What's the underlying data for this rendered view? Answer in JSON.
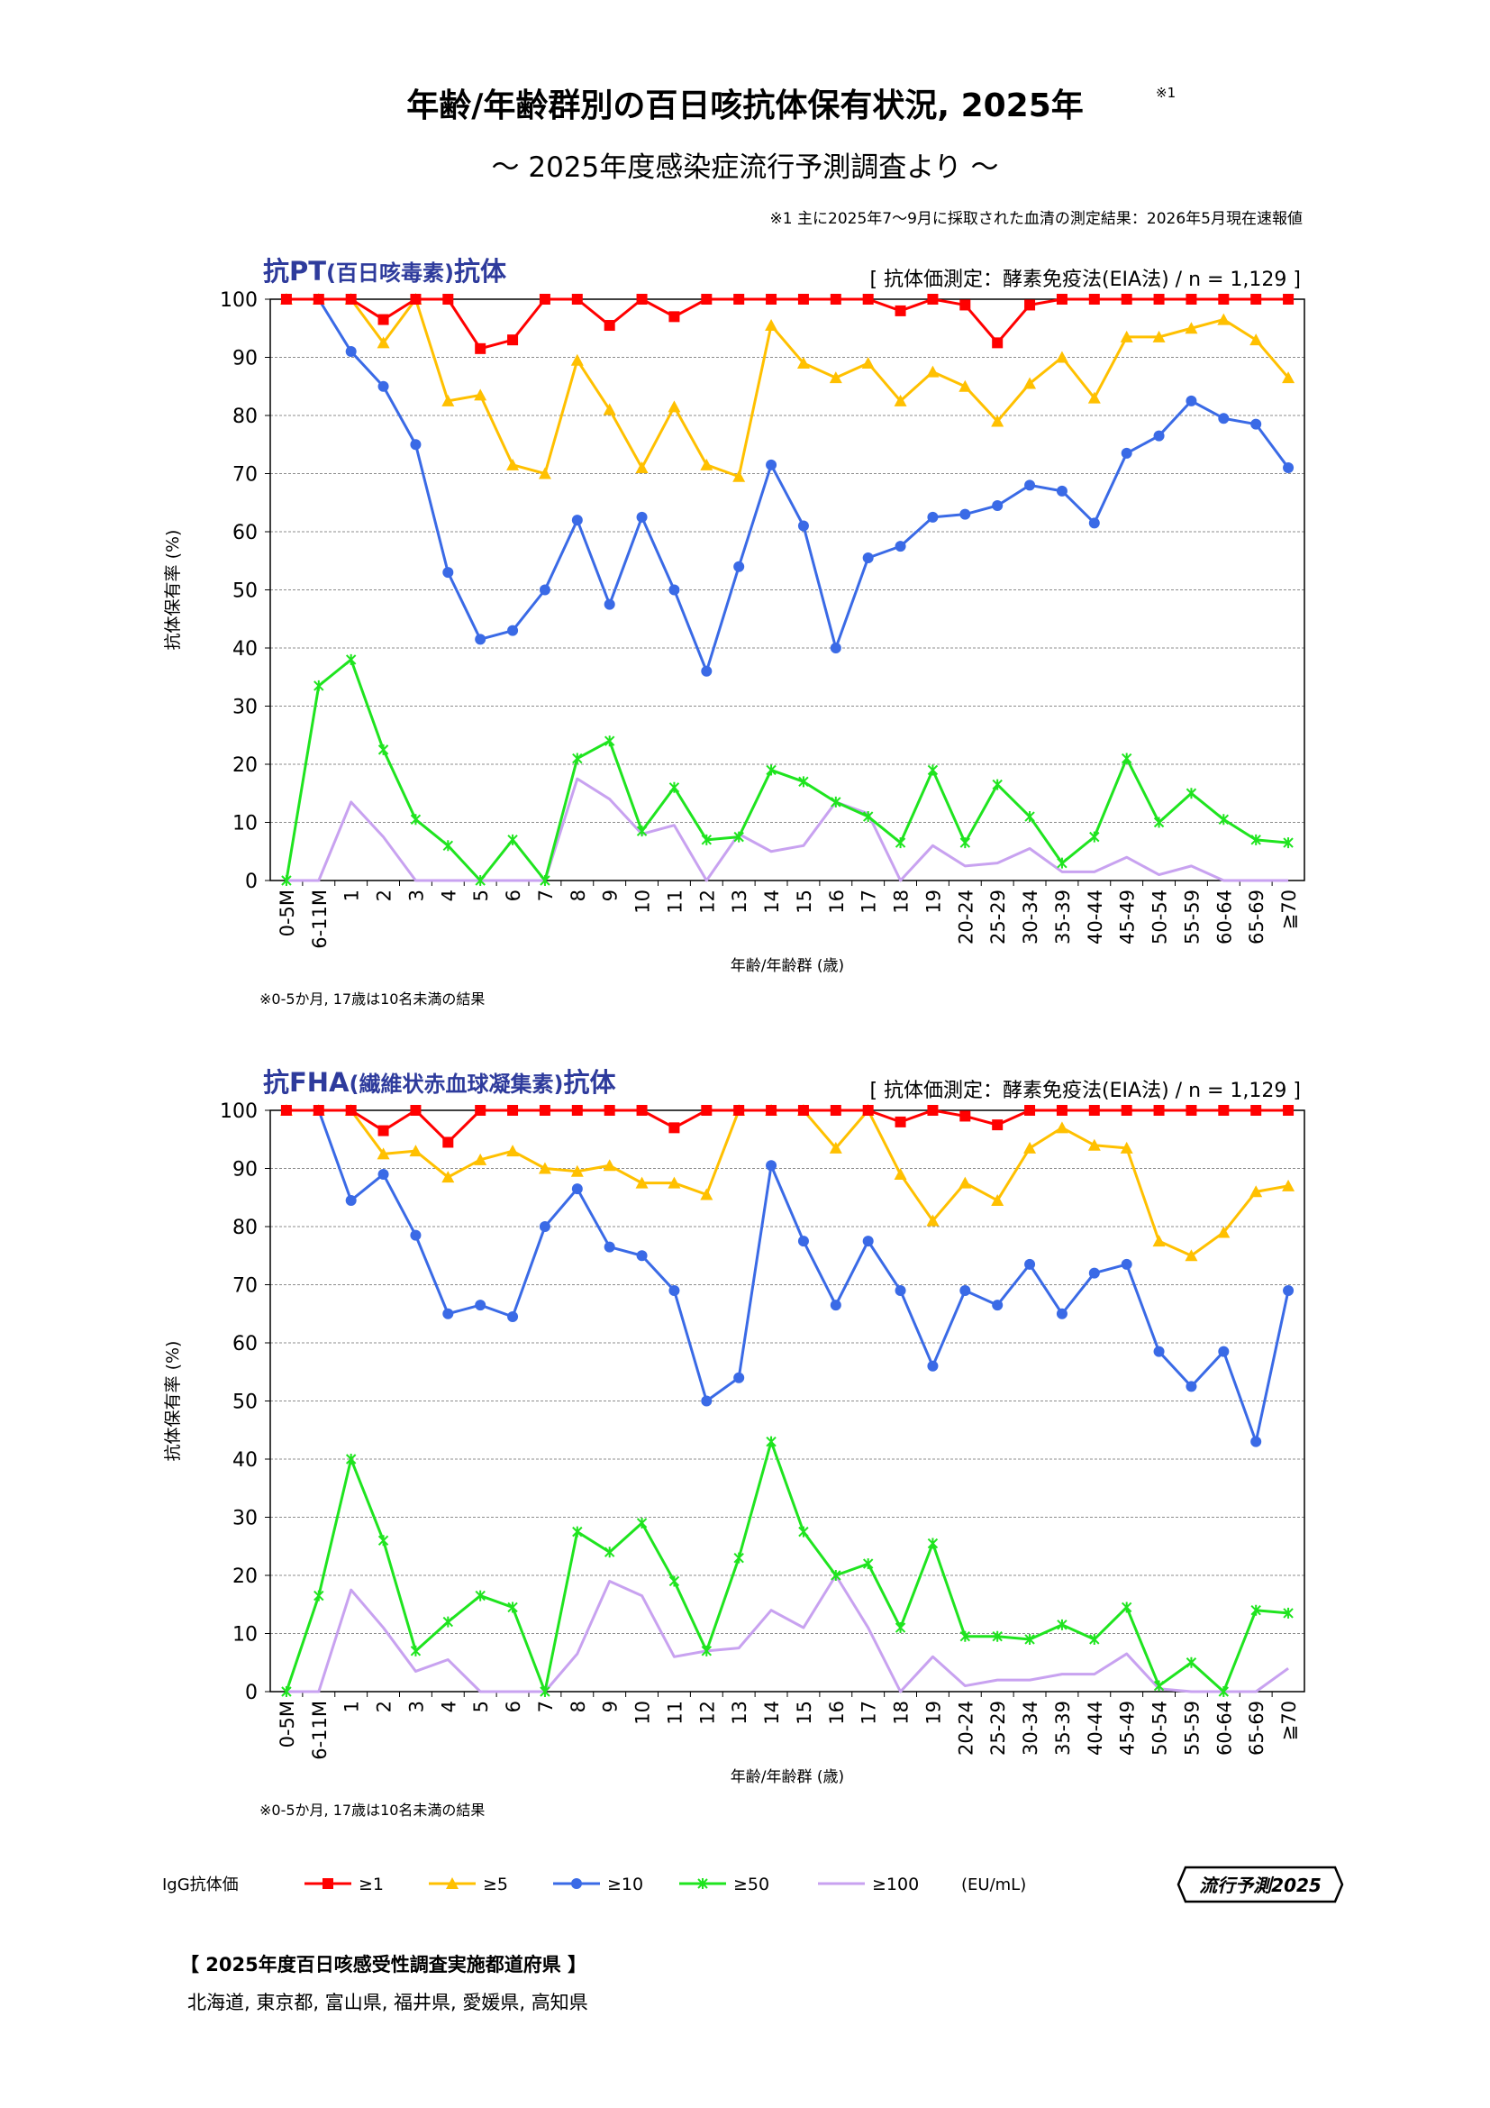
{
  "header": {
    "title": "年齢/年齢群別の百日咳抗体保有状況, 2025年",
    "title_note_mark": "※1",
    "subtitle": "～ 2025年度感染症流行予測調査より ～",
    "survey_note": "※1  主に2025年7～9月に採取された血清の測定結果：2026年5月現在速報値"
  },
  "colors": {
    "s1": "#ff0000",
    "s5": "#ffc000",
    "s10": "#3a6ae6",
    "s50": "#1fe41f",
    "s100": "#c8a2f0",
    "title_blue": "#2e3b9c"
  },
  "legend": {
    "label": "IgG抗体価",
    "items": [
      "≥1",
      "≥5",
      "≥10",
      "≥50",
      "≥100"
    ],
    "unit": "(EU/mL)"
  },
  "brand": "流行予測2025",
  "prefectures": {
    "header": "【 2025年度百日咳感受性調査実施都道府県 】",
    "list": "北海道, 東京都, 富山県, 福井県, 愛媛県, 高知県"
  },
  "chart_data": [
    {
      "type": "line",
      "title": "抗PT",
      "title_paren": "(百日咳毒素)",
      "title_suffix": "抗体",
      "method": "[ 抗体価測定：酵素免疫法(EIA法) / n = 1,129 ]",
      "xlabel": "年齢/年齢群 (歳)",
      "ylabel": "抗体保有率 (%)",
      "ylim": [
        0,
        100
      ],
      "yticks": [
        0,
        10,
        20,
        30,
        40,
        50,
        60,
        70,
        80,
        90,
        100
      ],
      "grid": true,
      "footnote": "※0-5か月, 17歳は10名未満の結果",
      "categories": [
        "0-5M",
        "6-11M",
        "1",
        "2",
        "3",
        "4",
        "5",
        "6",
        "7",
        "8",
        "9",
        "10",
        "11",
        "12",
        "13",
        "14",
        "15",
        "16",
        "17",
        "18",
        "19",
        "20-24",
        "25-29",
        "30-34",
        "35-39",
        "40-44",
        "45-49",
        "50-54",
        "55-59",
        "60-64",
        "65-69",
        "≧70"
      ],
      "series": [
        {
          "name": "≥1",
          "values": [
            100,
            100,
            100,
            96.5,
            100,
            100,
            91.5,
            93,
            100,
            100,
            95.5,
            100,
            97,
            100,
            100,
            100,
            100,
            100,
            100,
            98,
            100,
            99,
            92.5,
            99,
            100,
            100,
            100,
            100,
            100,
            100,
            100,
            100
          ]
        },
        {
          "name": "≥5",
          "values": [
            100,
            100,
            100,
            92.5,
            100,
            82.5,
            83.5,
            71.5,
            70,
            89.5,
            81,
            71,
            81.5,
            71.5,
            69.5,
            95.5,
            89,
            86.5,
            89,
            82.5,
            87.5,
            85,
            79,
            85.5,
            90,
            83,
            93.5,
            93.5,
            95,
            96.5,
            93,
            86.5
          ]
        },
        {
          "name": "≥10",
          "values": [
            100,
            100,
            91,
            85,
            75,
            53,
            41.5,
            43,
            50,
            62,
            47.5,
            62.5,
            50,
            36,
            54,
            71.5,
            61,
            40,
            55.5,
            57.5,
            62.5,
            63,
            64.5,
            68,
            67,
            61.5,
            73.5,
            76.5,
            82.5,
            79.5,
            78.5,
            71
          ]
        },
        {
          "name": "≥50",
          "values": [
            0,
            33.5,
            38,
            22.5,
            10.5,
            6,
            0,
            7,
            0,
            21,
            24,
            8.5,
            16,
            7,
            7.5,
            19,
            17,
            13.5,
            11,
            6.5,
            19,
            6.5,
            16.5,
            11,
            3,
            7.5,
            21,
            10,
            15,
            10.5,
            7,
            6.5
          ]
        },
        {
          "name": "≥100",
          "values": [
            0,
            0,
            13.5,
            7.5,
            0,
            0,
            0,
            0,
            0,
            17.5,
            14,
            8,
            9.5,
            0,
            8,
            5,
            6,
            13.5,
            11.5,
            0,
            6,
            2.5,
            3,
            5.5,
            1.5,
            1.5,
            4,
            1,
            2.5,
            0,
            0,
            0
          ]
        }
      ]
    },
    {
      "type": "line",
      "title": "抗FHA",
      "title_paren": "(繊維状赤血球凝集素)",
      "title_suffix": "抗体",
      "method": "[ 抗体価測定：酵素免疫法(EIA法) / n = 1,129 ]",
      "xlabel": "年齢/年齢群 (歳)",
      "ylabel": "抗体保有率 (%)",
      "ylim": [
        0,
        100
      ],
      "yticks": [
        0,
        10,
        20,
        30,
        40,
        50,
        60,
        70,
        80,
        90,
        100
      ],
      "grid": true,
      "footnote": "※0-5か月, 17歳は10名未満の結果",
      "categories": [
        "0-5M",
        "6-11M",
        "1",
        "2",
        "3",
        "4",
        "5",
        "6",
        "7",
        "8",
        "9",
        "10",
        "11",
        "12",
        "13",
        "14",
        "15",
        "16",
        "17",
        "18",
        "19",
        "20-24",
        "25-29",
        "30-34",
        "35-39",
        "40-44",
        "45-49",
        "50-54",
        "55-59",
        "60-64",
        "65-69",
        "≧70"
      ],
      "series": [
        {
          "name": "≥1",
          "values": [
            100,
            100,
            100,
            96.5,
            100,
            94.5,
            100,
            100,
            100,
            100,
            100,
            100,
            97,
            100,
            100,
            100,
            100,
            100,
            100,
            98,
            100,
            99,
            97.5,
            100,
            100,
            100,
            100,
            100,
            100,
            100,
            100,
            100
          ]
        },
        {
          "name": "≥5",
          "values": [
            100,
            100,
            100,
            92.5,
            93,
            88.5,
            91.5,
            93,
            90,
            89.5,
            90.5,
            87.5,
            87.5,
            85.5,
            100,
            100,
            100,
            93.5,
            100,
            89,
            81,
            87.5,
            84.5,
            93.5,
            97,
            94,
            93.5,
            77.5,
            75,
            79,
            86,
            87
          ]
        },
        {
          "name": "≥10",
          "values": [
            100,
            100,
            84.5,
            89,
            78.5,
            65,
            66.5,
            64.5,
            80,
            86.5,
            76.5,
            75,
            69,
            50,
            54,
            90.5,
            77.5,
            66.5,
            77.5,
            69,
            56,
            69,
            66.5,
            73.5,
            65,
            72,
            73.5,
            58.5,
            52.5,
            58.5,
            43,
            69
          ]
        },
        {
          "name": "≥50",
          "values": [
            0,
            16.5,
            40,
            26,
            7,
            12,
            16.5,
            14.5,
            0,
            27.5,
            24,
            29,
            19,
            7,
            23,
            43,
            27.5,
            20,
            22,
            11,
            25.5,
            9.5,
            9.5,
            9,
            11.5,
            9,
            14.5,
            1,
            5,
            0,
            14,
            13.5
          ]
        },
        {
          "name": "≥100",
          "values": [
            0,
            0,
            17.5,
            11,
            3.5,
            5.5,
            0,
            0,
            0,
            6.5,
            19,
            16.5,
            6,
            7,
            7.5,
            14,
            11,
            20,
            11,
            0,
            6,
            1,
            2,
            2,
            3,
            3,
            6.5,
            0.5,
            0,
            0,
            0,
            4
          ]
        }
      ]
    }
  ]
}
